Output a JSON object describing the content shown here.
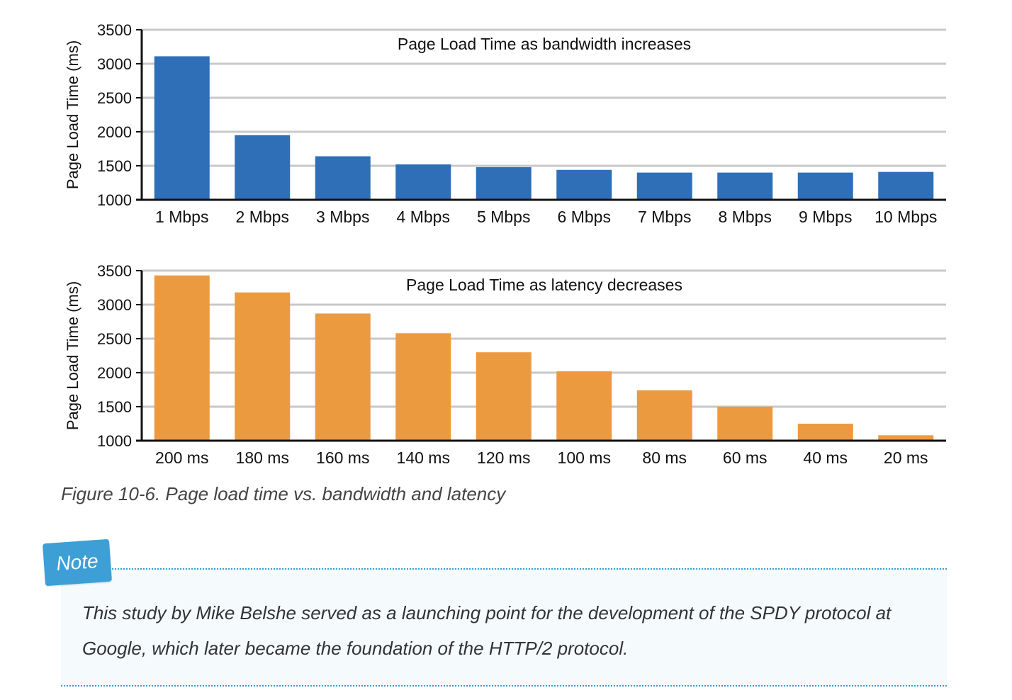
{
  "chart_data": [
    {
      "type": "bar",
      "title": "Page Load Time as bandwidth increases",
      "ylabel": "Page Load Time (ms)",
      "xlabel": "",
      "ylim": [
        1000,
        3500
      ],
      "yticks": [
        1000,
        1500,
        2000,
        2500,
        3000,
        3500
      ],
      "grid": true,
      "categories": [
        "1 Mbps",
        "2 Mbps",
        "3 Mbps",
        "4 Mbps",
        "5 Mbps",
        "6 Mbps",
        "7 Mbps",
        "8 Mbps",
        "9 Mbps",
        "10 Mbps"
      ],
      "values": [
        3110,
        1950,
        1640,
        1520,
        1480,
        1440,
        1400,
        1400,
        1400,
        1410
      ],
      "color": "#2e6fb7"
    },
    {
      "type": "bar",
      "title": "Page Load Time as latency decreases",
      "ylabel": "Page Load Time (ms)",
      "xlabel": "",
      "ylim": [
        1000,
        3500
      ],
      "yticks": [
        1000,
        1500,
        2000,
        2500,
        3000,
        3500
      ],
      "grid": true,
      "categories": [
        "200 ms",
        "180 ms",
        "160 ms",
        "140 ms",
        "120 ms",
        "100 ms",
        "80 ms",
        "60 ms",
        "40 ms",
        "20 ms"
      ],
      "values": [
        3430,
        3180,
        2870,
        2580,
        2300,
        2020,
        1740,
        1500,
        1250,
        1080
      ],
      "color": "#ec9a40"
    }
  ],
  "caption": "Figure 10-6. Page load time vs. bandwidth and latency",
  "note": {
    "label": "Note",
    "text": "This study by Mike Belshe served as a launching point for the development of the SPDY protocol at Google, which later became the foundation of the HTTP/2 protocol.",
    "accent_color": "#3d9fd6"
  }
}
